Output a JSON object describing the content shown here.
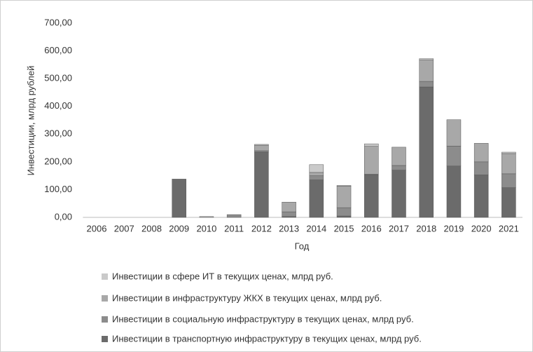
{
  "chart_data": {
    "type": "stacked_bar",
    "x_label": "Год",
    "y_label": "Инвестиции, млрд  рублей",
    "categories": [
      "2006",
      "2007",
      "2008",
      "2009",
      "2010",
      "2011",
      "2012",
      "2013",
      "2014",
      "2015",
      "2016",
      "2017",
      "2018",
      "2019",
      "2020",
      "2021"
    ],
    "series": [
      {
        "name": "Инвестиции в транспортную инфраструктуру в текущих ценах, млрд  руб.",
        "color": "#6b6b6b",
        "values": [
          0,
          0,
          0,
          138,
          0,
          0,
          235,
          3,
          135,
          5,
          153,
          170,
          470,
          185,
          153,
          107
        ]
      },
      {
        "name": "Инвестиции в социальную инфраструктуру в текущих ценах, млрд  руб.",
        "color": "#8c8c8c",
        "values": [
          0,
          0,
          0,
          0,
          0,
          10,
          5,
          17,
          15,
          30,
          3,
          17,
          20,
          72,
          47,
          50
        ]
      },
      {
        "name": "Инвестиции в инфраструктуру ЖКХ в текущих ценах, млрд  руб.",
        "color": "#a8a8a8",
        "values": [
          0,
          0,
          0,
          0,
          3,
          0,
          20,
          35,
          12,
          78,
          100,
          66,
          78,
          95,
          67,
          73
        ]
      },
      {
        "name": "Инвестиции в сфере ИТ в текущих ценах, млрд  руб.",
        "color": "#cacaca",
        "values": [
          0,
          0,
          0,
          0,
          0,
          0,
          3,
          0,
          28,
          2,
          9,
          0,
          4,
          0,
          0,
          5
        ]
      }
    ],
    "ylim": [
      0,
      700
    ],
    "yticks": [
      {
        "value": 0,
        "label": "0,00"
      },
      {
        "value": 100,
        "label": "100,00"
      },
      {
        "value": 200,
        "label": "200,00"
      },
      {
        "value": 300,
        "label": "300,00"
      },
      {
        "value": 400,
        "label": "400,00"
      },
      {
        "value": 500,
        "label": "500,00"
      },
      {
        "value": 600,
        "label": "600,00"
      },
      {
        "value": 700,
        "label": "700,00"
      }
    ],
    "grid": false
  }
}
